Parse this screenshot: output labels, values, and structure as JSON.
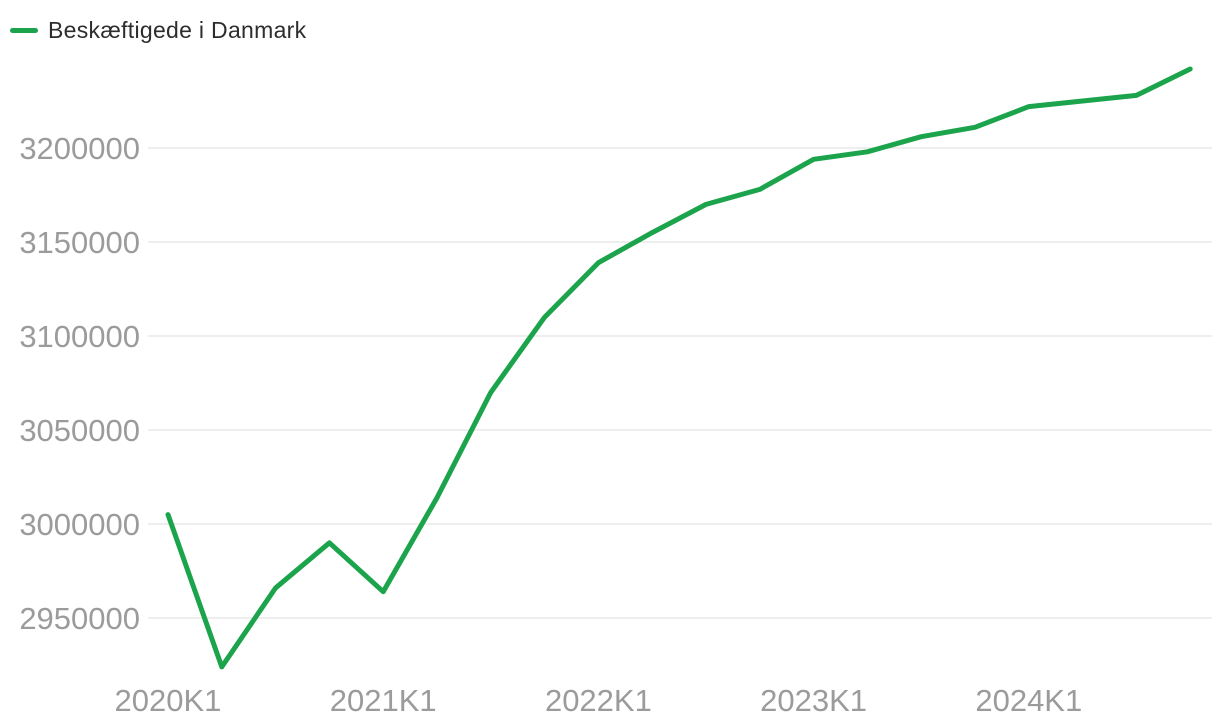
{
  "legend": {
    "label": "Beskæftigede i Danmark"
  },
  "colors": {
    "line": "#1CA44C",
    "grid": "#E8E8E8",
    "axis_text": "#9B9B9B",
    "legend_text": "#2D2D2D",
    "background": "#FFFFFF"
  },
  "chart_data": {
    "type": "line",
    "title": "Beskæftigede i Danmark",
    "series": [
      {
        "name": "Beskæftigede i Danmark",
        "values": [
          3005000,
          2924000,
          2966000,
          2990000,
          2964000,
          3014000,
          3070000,
          3110000,
          3139000,
          3155000,
          3170000,
          3178000,
          3194000,
          3198000,
          3206000,
          3211000,
          3222000,
          3225000,
          3228000,
          3242000
        ]
      }
    ],
    "categories": [
      "2020K1",
      "2020K2",
      "2020K3",
      "2020K4",
      "2021K1",
      "2021K2",
      "2021K3",
      "2021K4",
      "2022K1",
      "2022K2",
      "2022K3",
      "2022K4",
      "2023K1",
      "2023K2",
      "2023K3",
      "2023K4",
      "2024K1",
      "2024K2",
      "2024K3",
      "2024K4"
    ],
    "xlabel": "",
    "ylabel": "",
    "ylim": [
      2900000,
      3250000
    ],
    "yticks": [
      3200000,
      3150000,
      3100000,
      3050000,
      3000000,
      2950000
    ],
    "xticks": [
      {
        "label": "2020K1",
        "index": 0
      },
      {
        "label": "2021K1",
        "index": 4
      },
      {
        "label": "2022K1",
        "index": 8
      },
      {
        "label": "2023K1",
        "index": 12
      },
      {
        "label": "2024K1",
        "index": 16
      }
    ],
    "grid": "horizontal-only",
    "legend_position": "top-left"
  }
}
